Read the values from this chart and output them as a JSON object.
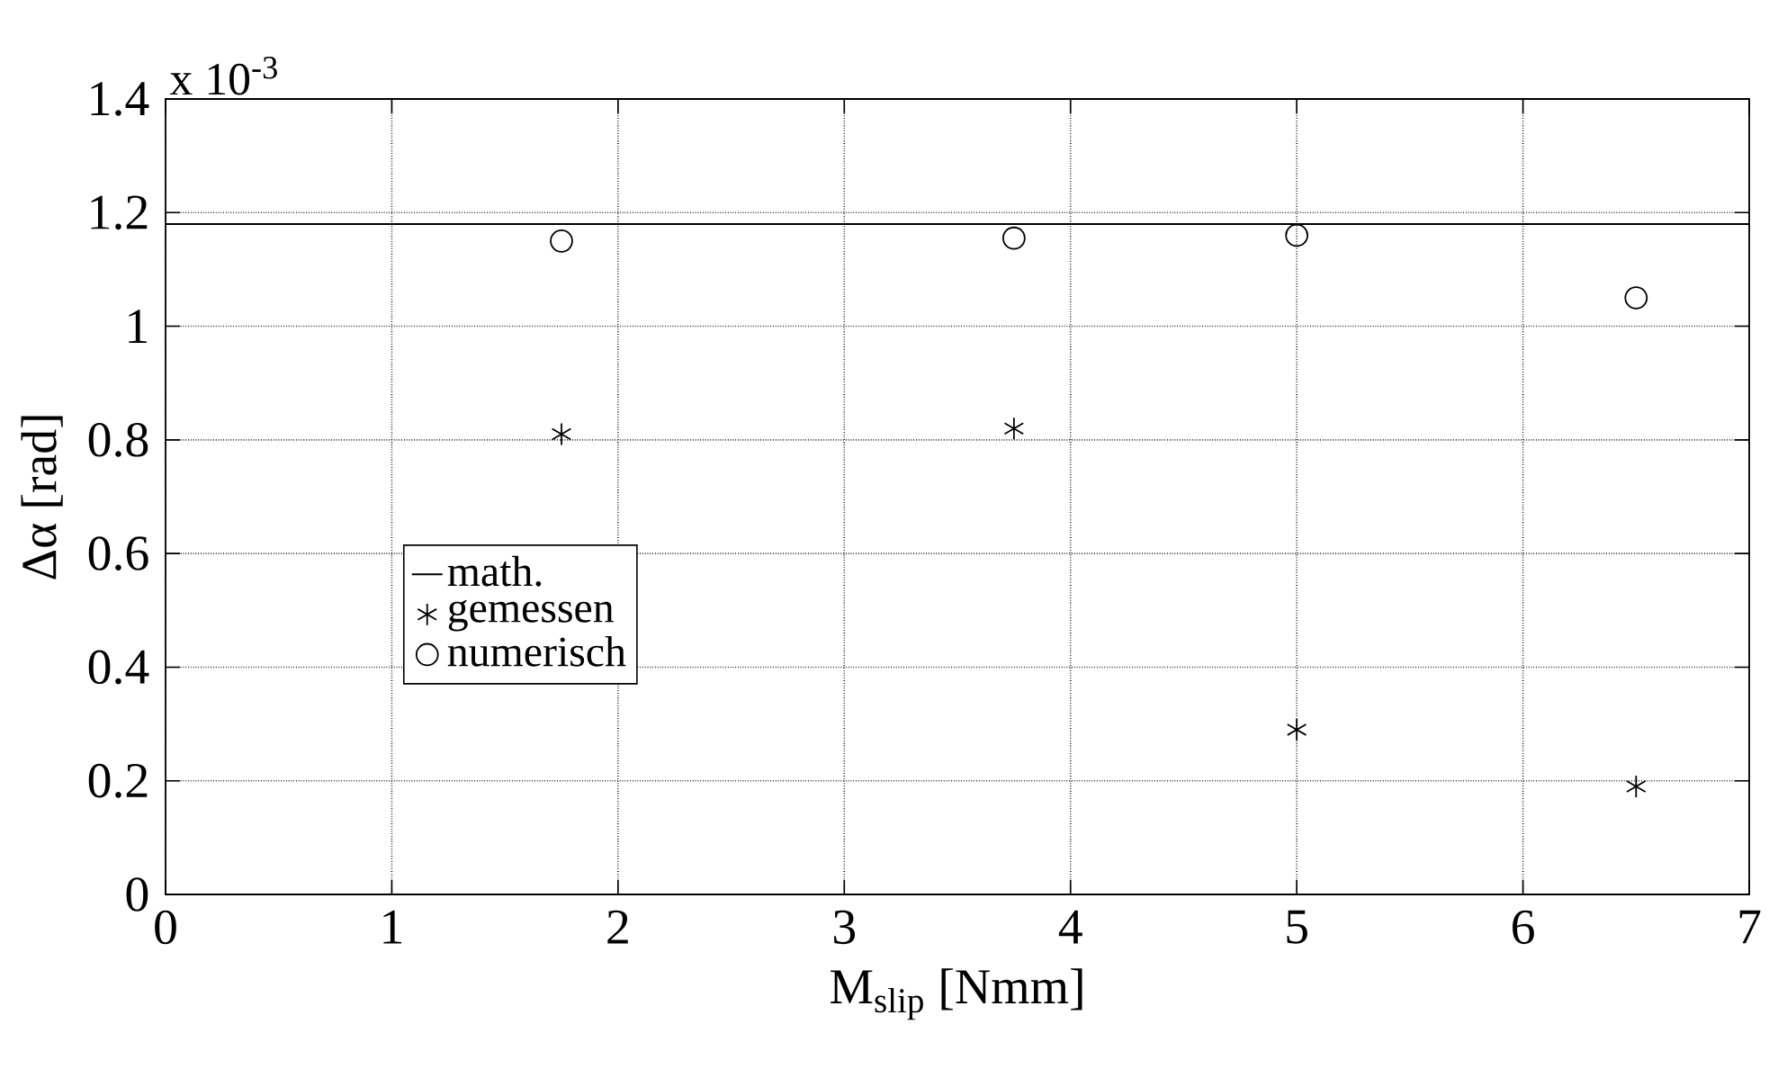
{
  "chart_data": {
    "type": "scatter",
    "xlabel": "M$_{slip}$ [Nmm]",
    "ylabel": "Δα [rad]",
    "annotations": [
      "x 10$^{-3}$"
    ],
    "xlim": [
      0,
      7
    ],
    "ylim": [
      0,
      1.4
    ],
    "xticks": [
      0,
      1,
      2,
      3,
      4,
      5,
      6,
      7
    ],
    "yticks": [
      0,
      0.2,
      0.4,
      0.6,
      0.8,
      1,
      1.2,
      1.4
    ],
    "grid": true,
    "legend": "left",
    "series": [
      {
        "name": "math.",
        "type": "line",
        "color": "#000000",
        "marker": "none",
        "line_style": "solid",
        "x": [
          0,
          7
        ],
        "values": [
          1.18,
          1.18
        ]
      },
      {
        "name": "gemessen",
        "type": "scatter",
        "color": "#000000",
        "marker": "cross",
        "x": [
          1.75,
          3.75,
          5,
          6.5
        ],
        "values": [
          0.81,
          0.82,
          0.29,
          0.19
        ]
      },
      {
        "name": "numerisch",
        "type": "scatter",
        "color": "#000000",
        "marker": "circle",
        "x": [
          1.75,
          3.75,
          5,
          6.5
        ],
        "values": [
          1.15,
          1.155,
          1.16,
          1.05
        ]
      }
    ]
  }
}
